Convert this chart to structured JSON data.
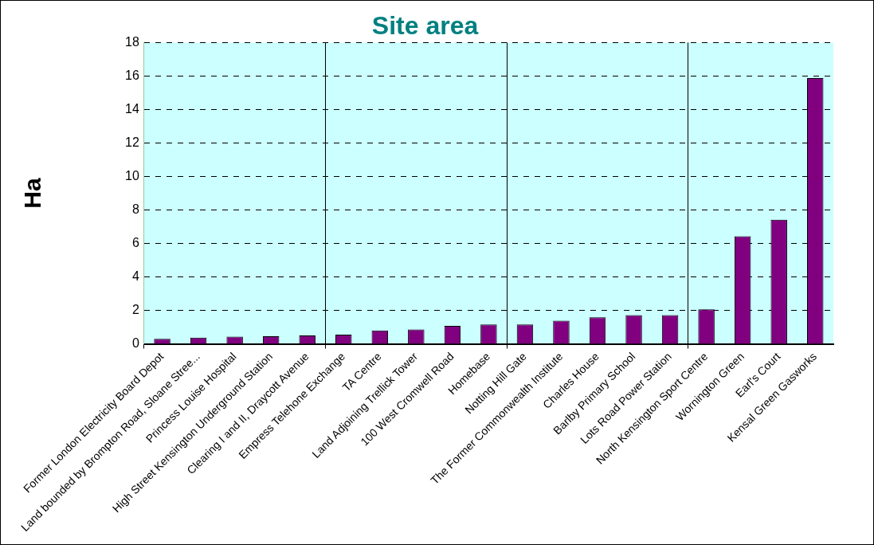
{
  "chart_data": {
    "type": "bar",
    "title": "Site area",
    "ylabel": "Ha",
    "categories": [
      "Former London Electricity Board Depot",
      "Land bounded by Brompton Road, Sloane Stree...",
      "Princess Louise Hospital",
      "High Street Kensington Underground Station",
      "Clearing I and II, Draycott Avenue",
      "Empress Telehone Exchange",
      "TA Centre",
      "Land Adjoining Trellick Tower",
      "100 West Cromwell Road",
      "Homebase",
      "Notting Hill Gate",
      "The Former Commonwealth Institute",
      "Charles House",
      "Barlby Primary School",
      "Lots Road Power Station",
      "North Kensington Sport Centre",
      "Wornington Green",
      "Earl's Court",
      "Kensal Green Gasworks"
    ],
    "values": [
      0.3,
      0.37,
      0.43,
      0.45,
      0.5,
      0.55,
      0.8,
      0.86,
      1.07,
      1.15,
      1.15,
      1.38,
      1.59,
      1.71,
      1.71,
      2.06,
      6.43,
      7.42,
      15.88
    ],
    "color": "#800080",
    "ylim": [
      0,
      18
    ],
    "yticks": [
      0,
      2,
      4,
      6,
      8,
      10,
      12,
      14,
      16,
      18
    ],
    "grid": true,
    "legend": false
  }
}
